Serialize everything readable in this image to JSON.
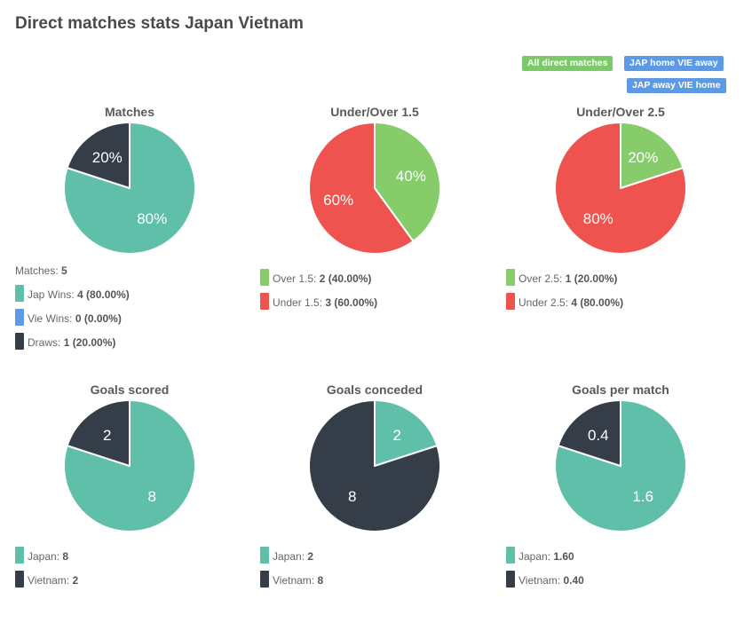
{
  "page": {
    "title": "Direct matches stats Japan Vietnam",
    "filters": [
      {
        "label": "All direct matches",
        "color": "#7cc96a"
      },
      {
        "label": "JAP home VIE away",
        "color": "#5d9ae6"
      },
      {
        "label": "JAP away VIE home",
        "color": "#5d9ae6"
      }
    ]
  },
  "colors": {
    "teal": "#5fbfa9",
    "dark": "#343d48",
    "green": "#86cc6b",
    "red": "#ef5350",
    "blue": "#5d9ae6"
  },
  "summary": {
    "label": "Matches:",
    "value": "5"
  },
  "chart_data": [
    {
      "type": "pie",
      "title": "Matches",
      "slices": [
        {
          "name": "Jap Wins",
          "value": 4,
          "label": "80%",
          "color": "#5fbfa9",
          "legend_value": "4 (80.00%)"
        },
        {
          "name": "Vie Wins",
          "value": 0,
          "label": "",
          "color": "#5d9ae6",
          "legend_value": "0 (0.00%)"
        },
        {
          "name": "Draws",
          "value": 1,
          "label": "20%",
          "color": "#343d48",
          "legend_value": "1 (20.00%)"
        }
      ]
    },
    {
      "type": "pie",
      "title": "Under/Over 1.5",
      "slices": [
        {
          "name": "Over 1.5",
          "value": 2,
          "label": "40%",
          "color": "#86cc6b",
          "legend_value": "2 (40.00%)"
        },
        {
          "name": "Under 1.5",
          "value": 3,
          "label": "60%",
          "color": "#ef5350",
          "legend_value": "3 (60.00%)"
        }
      ]
    },
    {
      "type": "pie",
      "title": "Under/Over 2.5",
      "slices": [
        {
          "name": "Over 2.5",
          "value": 1,
          "label": "20%",
          "color": "#86cc6b",
          "legend_value": "1 (20.00%)"
        },
        {
          "name": "Under 2.5",
          "value": 4,
          "label": "80%",
          "color": "#ef5350",
          "legend_value": "4 (80.00%)"
        }
      ]
    },
    {
      "type": "pie",
      "title": "Goals scored",
      "slices": [
        {
          "name": "Japan",
          "value": 8,
          "label": "8",
          "color": "#5fbfa9",
          "legend_value": "8"
        },
        {
          "name": "Vietnam",
          "value": 2,
          "label": "2",
          "color": "#343d48",
          "legend_value": "2"
        }
      ]
    },
    {
      "type": "pie",
      "title": "Goals conceded",
      "slices": [
        {
          "name": "Japan",
          "value": 2,
          "label": "2",
          "color": "#5fbfa9",
          "legend_value": "2"
        },
        {
          "name": "Vietnam",
          "value": 8,
          "label": "8",
          "color": "#343d48",
          "legend_value": "8"
        }
      ]
    },
    {
      "type": "pie",
      "title": "Goals per match",
      "slices": [
        {
          "name": "Japan",
          "value": 1.6,
          "label": "1.6",
          "color": "#5fbfa9",
          "legend_value": "1.60"
        },
        {
          "name": "Vietnam",
          "value": 0.4,
          "label": "0.4",
          "color": "#343d48",
          "legend_value": "0.40"
        }
      ]
    }
  ]
}
